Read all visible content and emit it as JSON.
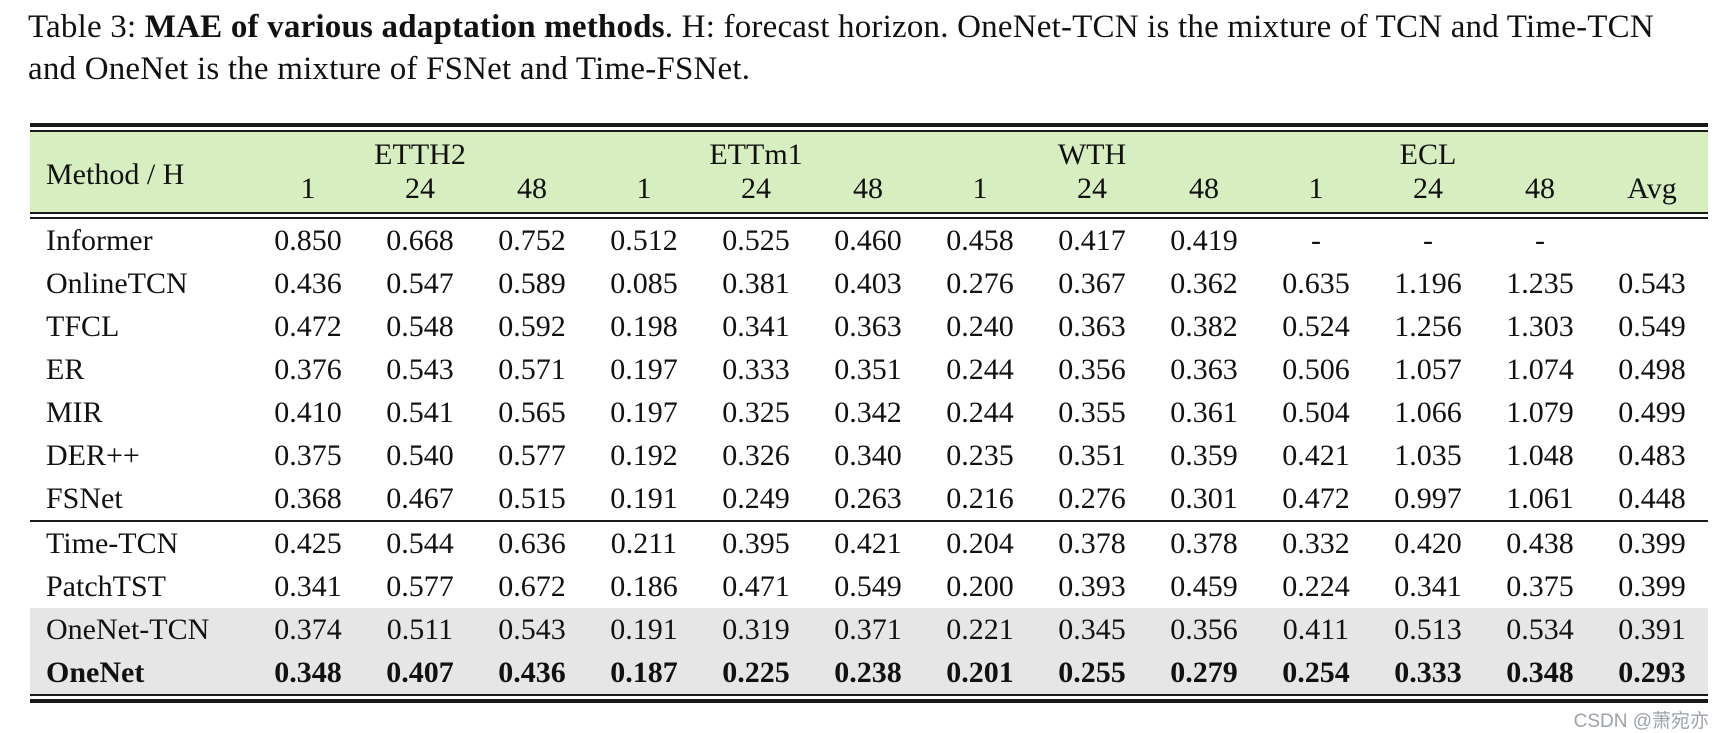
{
  "caption": {
    "label": "Table 3: ",
    "title_bold": "MAE of various adaptation methods",
    "rest": ". H: forecast horizon. OneNet-TCN is the mixture of TCN and Time-TCN  and OneNet is the mixture of FSNet and Time-FSNet."
  },
  "table": {
    "method_header": "Method / H",
    "avg_header": "Avg",
    "groups": [
      {
        "name": "ETTH2",
        "horizons": [
          "1",
          "24",
          "48"
        ]
      },
      {
        "name": "ETTm1",
        "horizons": [
          "1",
          "24",
          "48"
        ]
      },
      {
        "name": "WTH",
        "horizons": [
          "1",
          "24",
          "48"
        ]
      },
      {
        "name": "ECL",
        "horizons": [
          "1",
          "24",
          "48"
        ]
      }
    ],
    "rows": [
      {
        "method": "Informer",
        "values": [
          "0.850",
          "0.668",
          "0.752",
          "0.512",
          "0.525",
          "0.460",
          "0.458",
          "0.417",
          "0.419",
          "-",
          "-",
          "-",
          ""
        ],
        "section_start": false,
        "highlight": false,
        "bold": false
      },
      {
        "method": "OnlineTCN",
        "values": [
          "0.436",
          "0.547",
          "0.589",
          "0.085",
          "0.381",
          "0.403",
          "0.276",
          "0.367",
          "0.362",
          "0.635",
          "1.196",
          "1.235",
          "0.543"
        ],
        "section_start": false,
        "highlight": false,
        "bold": false
      },
      {
        "method": "TFCL",
        "values": [
          "0.472",
          "0.548",
          "0.592",
          "0.198",
          "0.341",
          "0.363",
          "0.240",
          "0.363",
          "0.382",
          "0.524",
          "1.256",
          "1.303",
          "0.549"
        ],
        "section_start": false,
        "highlight": false,
        "bold": false
      },
      {
        "method": "ER",
        "values": [
          "0.376",
          "0.543",
          "0.571",
          "0.197",
          "0.333",
          "0.351",
          "0.244",
          "0.356",
          "0.363",
          "0.506",
          "1.057",
          "1.074",
          "0.498"
        ],
        "section_start": false,
        "highlight": false,
        "bold": false
      },
      {
        "method": "MIR",
        "values": [
          "0.410",
          "0.541",
          "0.565",
          "0.197",
          "0.325",
          "0.342",
          "0.244",
          "0.355",
          "0.361",
          "0.504",
          "1.066",
          "1.079",
          "0.499"
        ],
        "section_start": false,
        "highlight": false,
        "bold": false
      },
      {
        "method": "DER++",
        "values": [
          "0.375",
          "0.540",
          "0.577",
          "0.192",
          "0.326",
          "0.340",
          "0.235",
          "0.351",
          "0.359",
          "0.421",
          "1.035",
          "1.048",
          "0.483"
        ],
        "section_start": false,
        "highlight": false,
        "bold": false
      },
      {
        "method": "FSNet",
        "values": [
          "0.368",
          "0.467",
          "0.515",
          "0.191",
          "0.249",
          "0.263",
          "0.216",
          "0.276",
          "0.301",
          "0.472",
          "0.997",
          "1.061",
          "0.448"
        ],
        "section_start": false,
        "highlight": false,
        "bold": false
      },
      {
        "method": "Time-TCN",
        "values": [
          "0.425",
          "0.544",
          "0.636",
          "0.211",
          "0.395",
          "0.421",
          "0.204",
          "0.378",
          "0.378",
          "0.332",
          "0.420",
          "0.438",
          "0.399"
        ],
        "section_start": true,
        "highlight": false,
        "bold": false
      },
      {
        "method": "PatchTST",
        "values": [
          "0.341",
          "0.577",
          "0.672",
          "0.186",
          "0.471",
          "0.549",
          "0.200",
          "0.393",
          "0.459",
          "0.224",
          "0.341",
          "0.375",
          "0.399"
        ],
        "section_start": false,
        "highlight": false,
        "bold": false
      },
      {
        "method": "OneNet-TCN",
        "values": [
          "0.374",
          "0.511",
          "0.543",
          "0.191",
          "0.319",
          "0.371",
          "0.221",
          "0.345",
          "0.356",
          "0.411",
          "0.513",
          "0.534",
          "0.391"
        ],
        "section_start": false,
        "highlight": true,
        "bold": false
      },
      {
        "method": "OneNet",
        "values": [
          "0.348",
          "0.407",
          "0.436",
          "0.187",
          "0.225",
          "0.238",
          "0.201",
          "0.255",
          "0.279",
          "0.254",
          "0.333",
          "0.348",
          "0.293"
        ],
        "section_start": false,
        "highlight": true,
        "bold": true
      }
    ]
  },
  "watermark": "CSDN @萧宛亦",
  "colors": {
    "header_bg": "#d7eec0",
    "highlight_bg": "#e6e6e6",
    "rule": "#1a1a1a",
    "watermark_text": "#9ca2a8"
  }
}
